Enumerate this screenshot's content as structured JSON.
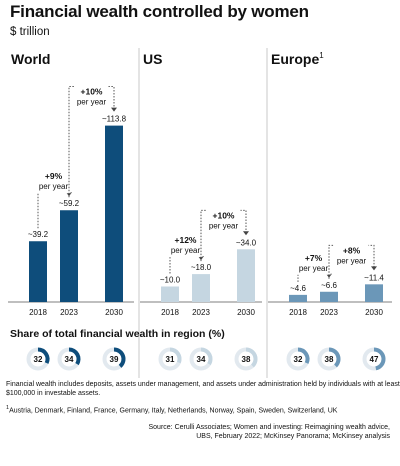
{
  "title": "Financial wealth controlled by women",
  "subtitle": "$ trillion",
  "colors": {
    "world": "#0e4d7b",
    "us": "#c5d6e1",
    "europe": "#6b97b8",
    "axis": "#555555",
    "divider": "#bbbbbb",
    "ring_bg": "#e2e9ef"
  },
  "chart_data": [
    {
      "type": "bar",
      "region": "World",
      "region_sup": "",
      "categories": [
        "2018",
        "2023",
        "2030"
      ],
      "values": [
        39.2,
        59.2,
        113.8
      ],
      "value_labels": [
        "~39.2",
        "~59.2",
        "~113.8"
      ],
      "growth": [
        {
          "from": 0,
          "to": 1,
          "rate": "+9%",
          "unit": "per year"
        },
        {
          "from": 1,
          "to": 2,
          "rate": "+10%",
          "unit": "per year"
        }
      ],
      "share_values": [
        32,
        34,
        39
      ],
      "color_key": "world",
      "ylim": [
        0,
        120
      ]
    },
    {
      "type": "bar",
      "region": "US",
      "region_sup": "",
      "categories": [
        "2018",
        "2023",
        "2030"
      ],
      "values": [
        10.0,
        18.0,
        34.0
      ],
      "value_labels": [
        "~10.0",
        "~18.0",
        "~34.0"
      ],
      "growth": [
        {
          "from": 0,
          "to": 1,
          "rate": "+12%",
          "unit": "per year"
        },
        {
          "from": 1,
          "to": 2,
          "rate": "+10%",
          "unit": "per year"
        }
      ],
      "share_values": [
        31,
        34,
        38
      ],
      "color_key": "us",
      "ylim": [
        0,
        120
      ]
    },
    {
      "type": "bar",
      "region": "Europe",
      "region_sup": "1",
      "categories": [
        "2018",
        "2023",
        "2030"
      ],
      "values": [
        4.6,
        6.6,
        11.4
      ],
      "value_labels": [
        "~4.6",
        "~6.6",
        "~11.4"
      ],
      "growth": [
        {
          "from": 0,
          "to": 1,
          "rate": "+7%",
          "unit": "per year"
        },
        {
          "from": 1,
          "to": 2,
          "rate": "+8%",
          "unit": "per year"
        }
      ],
      "share_values": [
        32,
        38,
        47
      ],
      "color_key": "europe",
      "ylim": [
        0,
        120
      ]
    }
  ],
  "share_title": "Share of total financial wealth in region (%)",
  "note_lines": [
    "Financial wealth includes deposits, assets under management, and assets under administration held by individuals with at least",
    "$100,000 in investable assets."
  ],
  "footnote_marker": "1",
  "footnote": "Austria, Denmark, Finland, France, Germany, Italy, Netherlands, Norway, Spain, Sweden, Switzerland, UK",
  "source_lines": [
    "Source: Cerulli Associates; Women and investing: Reimagining wealth advice,",
    "UBS, February 2022; McKinsey Panorama; McKinsey analysis"
  ]
}
